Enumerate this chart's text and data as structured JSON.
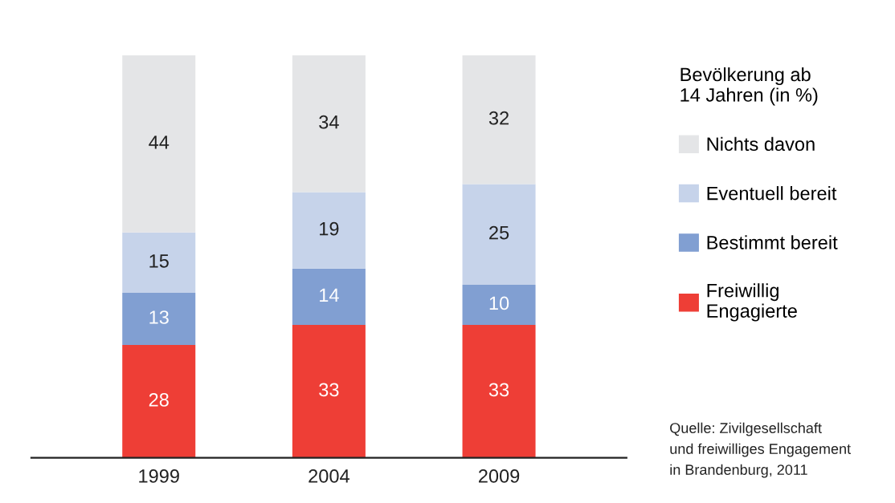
{
  "chart_data": {
    "type": "bar",
    "stacked": true,
    "data_labels": true,
    "legend": "right",
    "legend_title": "Bevölkerung ab\n14 Jahren (in %)",
    "categories": [
      "1999",
      "2004",
      "2009"
    ],
    "series": [
      {
        "name": "Freiwillig Engagierte",
        "color": "#ee3e36",
        "values": [
          28,
          33,
          33
        ]
      },
      {
        "name": "Bestimmt bereit",
        "color": "#819fd2",
        "values": [
          13,
          14,
          10
        ]
      },
      {
        "name": "Eventuell bereit",
        "color": "#c6d3ea",
        "values": [
          15,
          19,
          25
        ]
      },
      {
        "name": "Nichts davon",
        "color": "#e4e5e7",
        "values": [
          44,
          34,
          32
        ]
      }
    ],
    "annotations": [
      "Quelle: Zivilgesellschaft\nund freiwilliges Engagement\nin Brandenburg, 2011"
    ]
  }
}
